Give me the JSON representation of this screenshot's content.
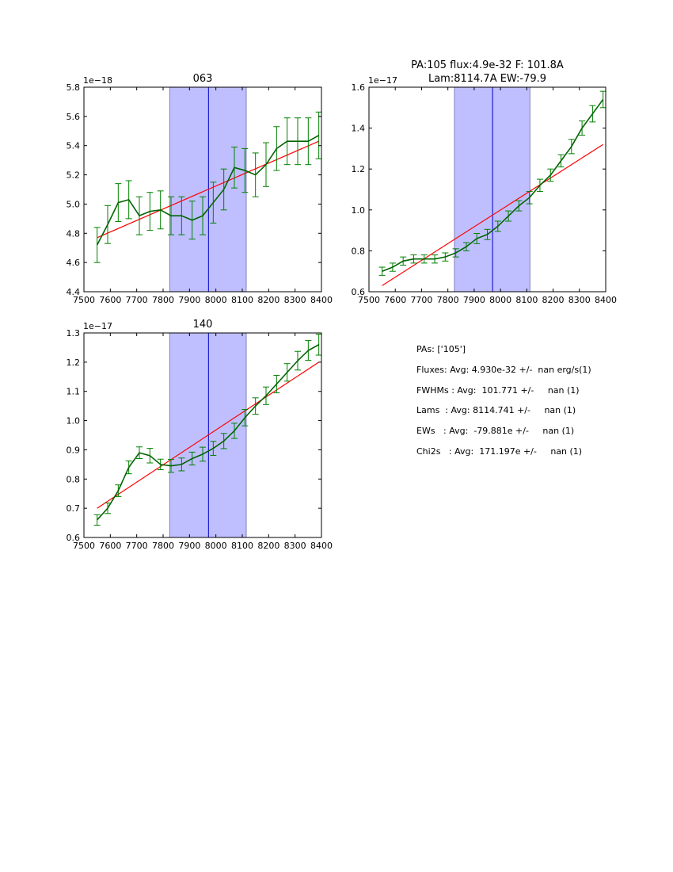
{
  "chart_data": [
    {
      "type": "line",
      "title": "063",
      "offset_label": "1e−18",
      "xlim": [
        7500,
        8400
      ],
      "ylim": [
        4.4,
        5.8
      ],
      "xticks": [
        "7500",
        "7600",
        "7700",
        "7800",
        "7900",
        "8000",
        "8100",
        "8200",
        "8300",
        "8400"
      ],
      "yticks": [
        "4.4",
        "4.6",
        "4.8",
        "5.0",
        "5.2",
        "5.4",
        "5.6",
        "5.8"
      ],
      "x": [
        7550,
        7590,
        7630,
        7670,
        7710,
        7750,
        7790,
        7830,
        7870,
        7910,
        7950,
        7990,
        8030,
        8070,
        8110,
        8150,
        8190,
        8230,
        8270,
        8310,
        8350,
        8390
      ],
      "y": [
        4.72,
        4.86,
        5.01,
        5.03,
        4.92,
        4.95,
        4.96,
        4.92,
        4.92,
        4.89,
        4.92,
        5.01,
        5.1,
        5.25,
        5.23,
        5.2,
        5.27,
        5.38,
        5.43,
        5.43,
        5.43,
        5.47
      ],
      "yerr": [
        0.12,
        0.13,
        0.13,
        0.13,
        0.13,
        0.13,
        0.13,
        0.13,
        0.13,
        0.13,
        0.13,
        0.14,
        0.14,
        0.14,
        0.15,
        0.15,
        0.15,
        0.15,
        0.16,
        0.16,
        0.16,
        0.16
      ],
      "fit": {
        "x": [
          7550,
          8390
        ],
        "y": [
          4.77,
          5.43
        ]
      },
      "band": [
        7825,
        8115
      ],
      "center_line": 7972
    },
    {
      "type": "line",
      "title": "PA:105 flux:4.9e-32 F: 101.8A",
      "title_line2": "Lam:8114.7A EW:-79.9",
      "offset_label": "1e−17",
      "xlim": [
        7500,
        8400
      ],
      "ylim": [
        0.6,
        1.6
      ],
      "xticks": [
        "7500",
        "7600",
        "7700",
        "7800",
        "7900",
        "8000",
        "8100",
        "8200",
        "8300",
        "8400"
      ],
      "yticks": [
        "0.6",
        "0.8",
        "1.0",
        "1.2",
        "1.4",
        "1.6"
      ],
      "x": [
        7550,
        7590,
        7630,
        7670,
        7710,
        7750,
        7790,
        7830,
        7870,
        7910,
        7950,
        7990,
        8030,
        8070,
        8110,
        8150,
        8190,
        8230,
        8270,
        8310,
        8350,
        8390
      ],
      "y": [
        0.7,
        0.72,
        0.75,
        0.76,
        0.76,
        0.76,
        0.77,
        0.79,
        0.82,
        0.86,
        0.88,
        0.92,
        0.97,
        1.02,
        1.06,
        1.12,
        1.17,
        1.24,
        1.31,
        1.4,
        1.47,
        1.54
      ],
      "yerr": [
        0.02,
        0.02,
        0.02,
        0.02,
        0.02,
        0.02,
        0.02,
        0.02,
        0.02,
        0.025,
        0.025,
        0.025,
        0.025,
        0.025,
        0.03,
        0.03,
        0.03,
        0.03,
        0.035,
        0.035,
        0.04,
        0.04
      ],
      "fit": {
        "x": [
          7550,
          8390
        ],
        "y": [
          0.63,
          1.32
        ]
      },
      "band": [
        7825,
        8112
      ],
      "center_line": 7970
    },
    {
      "type": "line",
      "title": "140",
      "offset_label": "1e−17",
      "xlim": [
        7500,
        8400
      ],
      "ylim": [
        0.6,
        1.3
      ],
      "xticks": [
        "7500",
        "7600",
        "7700",
        "7800",
        "7900",
        "8000",
        "8100",
        "8200",
        "8300",
        "8400"
      ],
      "yticks": [
        "0.6",
        "0.7",
        "0.8",
        "0.9",
        "1.0",
        "1.1",
        "1.2",
        "1.3"
      ],
      "x": [
        7550,
        7590,
        7630,
        7670,
        7710,
        7750,
        7790,
        7830,
        7870,
        7910,
        7950,
        7990,
        8030,
        8070,
        8110,
        8150,
        8190,
        8230,
        8270,
        8310,
        8350,
        8390
      ],
      "y": [
        0.66,
        0.7,
        0.76,
        0.84,
        0.89,
        0.88,
        0.85,
        0.845,
        0.85,
        0.87,
        0.885,
        0.905,
        0.93,
        0.965,
        1.01,
        1.05,
        1.085,
        1.125,
        1.165,
        1.205,
        1.24,
        1.26
      ],
      "yerr": [
        0.018,
        0.018,
        0.02,
        0.022,
        0.02,
        0.025,
        0.018,
        0.022,
        0.022,
        0.022,
        0.024,
        0.024,
        0.026,
        0.026,
        0.028,
        0.028,
        0.03,
        0.03,
        0.03,
        0.032,
        0.034,
        0.036
      ],
      "fit": {
        "x": [
          7550,
          8390
        ],
        "y": [
          0.7,
          1.2
        ]
      },
      "band": [
        7825,
        8115
      ],
      "center_line": 7972
    }
  ],
  "summary": {
    "pas": "PAs: ['105']",
    "fluxes": "Fluxes: Avg: 4.930e-32 +/-  nan erg/s(1)",
    "fwhms": "FWHMs : Avg:  101.771 +/-     nan (1)",
    "lams": "Lams  : Avg: 8114.741 +/-     nan (1)",
    "ews": "EWs   : Avg:  -79.881e +/-     nan (1)",
    "chi2s": "Chi2s   : Avg:  171.197e +/-     nan (1)"
  },
  "colors": {
    "data": "#006400",
    "errorbar": "#008000",
    "fit": "#ff0000",
    "band": "#bfbfff",
    "band_edge": "#7f7fbf",
    "center": "#0000cc"
  }
}
